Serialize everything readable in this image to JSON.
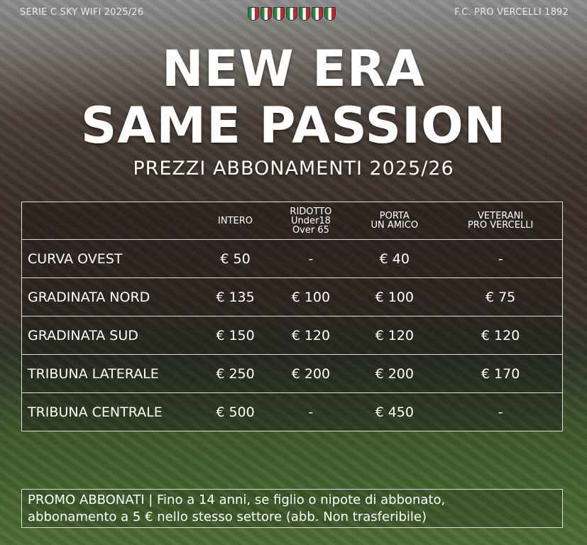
{
  "header": {
    "left": "SERIE C SKY WIFI 2025/26",
    "right": "F.C. PRO VERCELLI 1892",
    "shields_count": 7,
    "shield_colors": [
      "#1f8a3a",
      "#ffffff",
      "#c8242c"
    ]
  },
  "title": {
    "line1": "NEW ERA",
    "line2": "SAME PASSION",
    "subtitle": "PREZZI ABBONAMENTI 2025/26"
  },
  "table": {
    "columns": [
      {
        "l1": "",
        "l2": "",
        "l3": ""
      },
      {
        "l1": "INTERO",
        "l2": "",
        "l3": ""
      },
      {
        "l1": "RIDOTTO",
        "l2": "Under18",
        "l3": "Over 65"
      },
      {
        "l1": "PORTA",
        "l2": "UN AMICO",
        "l3": ""
      },
      {
        "l1": "VETERANI",
        "l2": "PRO VERCELLI",
        "l3": ""
      }
    ],
    "rows": [
      [
        "CURVA OVEST",
        "€ 50",
        "-",
        "€ 40",
        "-"
      ],
      [
        "GRADINATA NORD",
        "€ 135",
        "€ 100",
        "€ 100",
        "€ 75"
      ],
      [
        "GRADINATA SUD",
        "€ 150",
        "€ 120",
        "€ 120",
        "€ 120"
      ],
      [
        "TRIBUNA LATERALE",
        "€ 250",
        "€ 200",
        "€ 200",
        "€ 170"
      ],
      [
        "TRIBUNA CENTRALE",
        "€ 500",
        "-",
        "€ 450",
        "-"
      ]
    ]
  },
  "promo": {
    "line1": "PROMO ABBONATI | Fino a 14 anni, se figlio o nipote di abbonato,",
    "line2": "abbonamento a 5 € nello stesso settore (abb. Non trasferibile)"
  }
}
